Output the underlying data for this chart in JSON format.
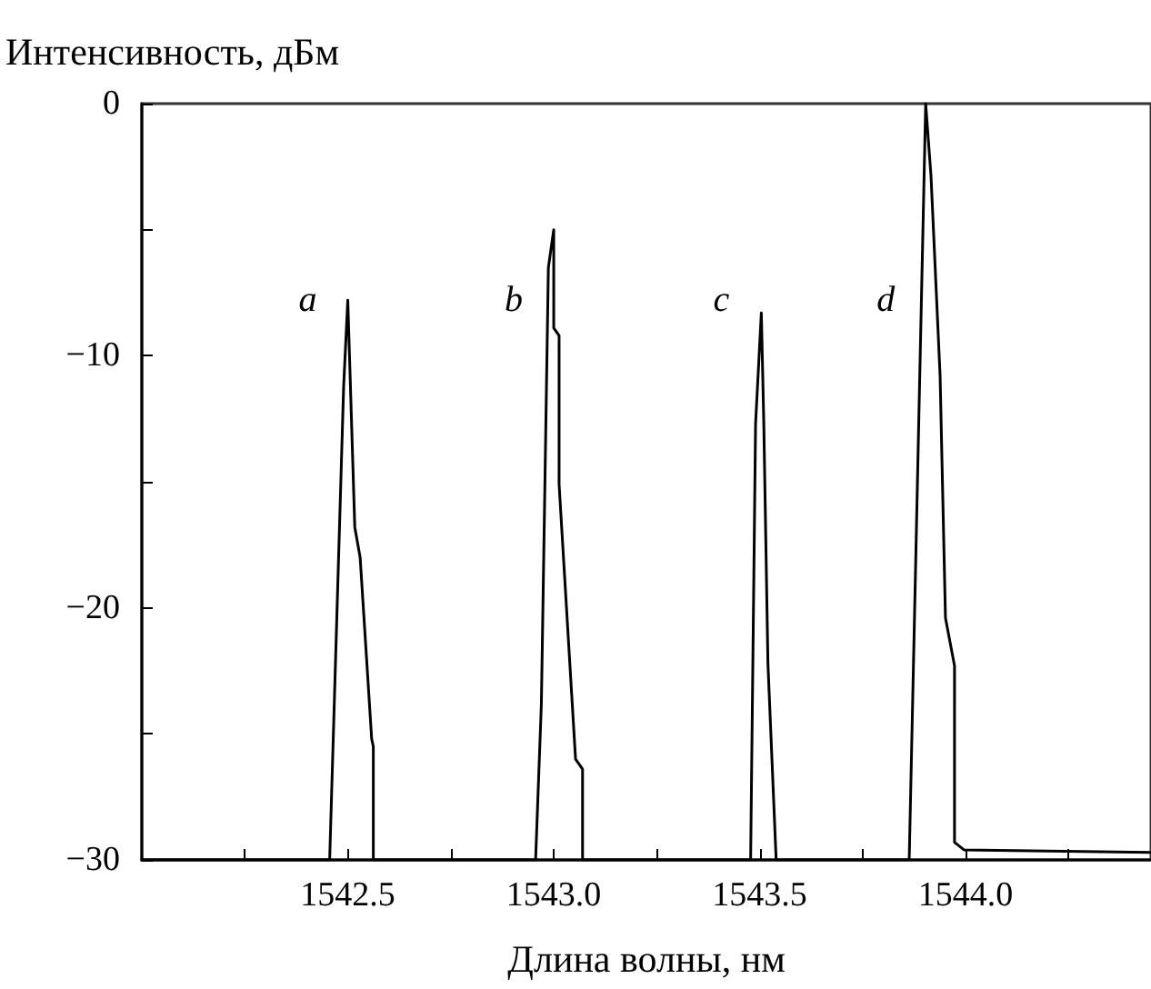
{
  "chart_data": {
    "type": "line",
    "xlabel": "Длина волны, нм",
    "ylabel": "Интенсивность, дБм",
    "x": [
      1542.0,
      1542.456,
      1542.49,
      1542.5,
      1542.517,
      1542.53,
      1542.558,
      1542.562,
      1542.562,
      1542.956,
      1542.97,
      1542.987,
      1543.0,
      1543.0,
      1543.013,
      1543.013,
      1543.053,
      1543.07,
      1543.07,
      1543.478,
      1543.49,
      1543.504,
      1543.51,
      1543.52,
      1543.54,
      1543.863,
      1543.903,
      1543.916,
      1543.938,
      1543.951,
      1543.973,
      1543.973,
      1543.996,
      1544.45
    ],
    "values": [
      -30,
      -30,
      -11.2,
      -7.8,
      -16.8,
      -18,
      -25.2,
      -25.5,
      -30,
      -30,
      -23.8,
      -6.5,
      -5.0,
      -8.9,
      -9.2,
      -15.1,
      -26.0,
      -26.4,
      -30,
      -30,
      -12.7,
      -8.3,
      -12.7,
      -22.2,
      -30,
      -30,
      0,
      -2.9,
      -10.8,
      -20.4,
      -22.3,
      -29.3,
      -29.6,
      -29.7
    ],
    "color": "#000000",
    "marker": "none",
    "line_style": "solid",
    "grid": false,
    "xlim": [
      1542.0,
      1544.45
    ],
    "ylim": [
      -30,
      0
    ],
    "xticks": [
      {
        "value": 1542.25,
        "label": null
      },
      1542.5,
      {
        "value": 1542.75,
        "label": null
      },
      {
        "value": 1543,
        "label": "1543.0"
      },
      {
        "value": 1543.25,
        "label": null
      },
      1543.5,
      {
        "value": 1543.75,
        "label": null
      },
      {
        "value": 1544,
        "label": "1544.0"
      },
      {
        "value": 1544.25,
        "label": null
      }
    ],
    "yticks": [
      {
        "value": -30,
        "label": "−30"
      },
      {
        "value": -25,
        "label": null
      },
      {
        "value": -20,
        "label": "−20"
      },
      {
        "value": -15,
        "label": null
      },
      {
        "value": -10,
        "label": "−10"
      },
      {
        "value": -5,
        "label": null
      },
      0
    ],
    "annotations": [
      "a",
      "b",
      "c",
      "d"
    ]
  }
}
